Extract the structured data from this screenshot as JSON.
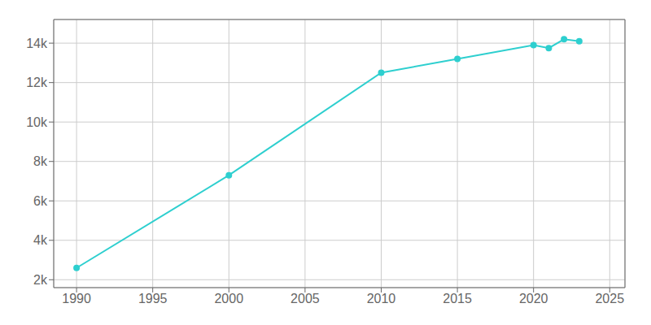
{
  "chart_data": {
    "type": "line",
    "x": [
      1990,
      2000,
      2010,
      2015,
      2020,
      2021,
      2022,
      2023
    ],
    "values": [
      2600,
      7300,
      12500,
      13200,
      13900,
      13750,
      14200,
      14100
    ],
    "color": "#2ecfcf",
    "marker": "o",
    "xlim": [
      1988.5,
      2026
    ],
    "xticks": [
      1990,
      1995,
      2000,
      2005,
      2010,
      2015,
      2020,
      2025
    ],
    "ylim": [
      1600,
      15200
    ],
    "yticks": [
      {
        "value": 2000,
        "label": "2k"
      },
      {
        "value": 4000,
        "label": "4k"
      },
      {
        "value": 6000,
        "label": "6k"
      },
      {
        "value": 8000,
        "label": "8k"
      },
      {
        "value": 10000,
        "label": "10k"
      },
      {
        "value": 12000,
        "label": "12k"
      },
      {
        "value": 14000,
        "label": "14k"
      }
    ],
    "grid": true
  }
}
